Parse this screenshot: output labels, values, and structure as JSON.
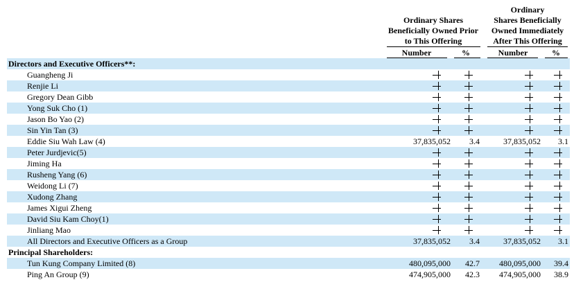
{
  "header": {
    "group1_lines": [
      "Ordinary Shares",
      "Beneficially Owned Prior",
      "to This Offering"
    ],
    "group2_lines": [
      "Ordinary",
      "Shares Beneficially",
      "Owned Immediately",
      "After This Offering"
    ],
    "col_number_1": "Number",
    "col_pct_1": "%",
    "col_number_2": "Number",
    "col_pct_2": "%"
  },
  "dash_symbol": "—",
  "rows": [
    {
      "type": "section",
      "label": "Directors and Executive Officers**:"
    },
    {
      "type": "data",
      "label": "Guangheng Ji",
      "before_number": "—",
      "before_pct": "—",
      "after_number": "—",
      "after_pct": "—"
    },
    {
      "type": "data",
      "label": "Renjie Li",
      "before_number": "—",
      "before_pct": "—",
      "after_number": "—",
      "after_pct": "—"
    },
    {
      "type": "data",
      "label": "Gregory Dean Gibb",
      "before_number": "—",
      "before_pct": "—",
      "after_number": "—",
      "after_pct": "—"
    },
    {
      "type": "data",
      "label": "Yong Suk Cho (1)",
      "before_number": "—",
      "before_pct": "—",
      "after_number": "—",
      "after_pct": "—"
    },
    {
      "type": "data",
      "label": "Jason Bo Yao (2)",
      "before_number": "—",
      "before_pct": "—",
      "after_number": "—",
      "after_pct": "—"
    },
    {
      "type": "data",
      "label": "Sin Yin Tan (3)",
      "before_number": "—",
      "before_pct": "—",
      "after_number": "—",
      "after_pct": "—"
    },
    {
      "type": "data",
      "label": "Eddie Siu Wah Law (4)",
      "before_number": "37,835,052",
      "before_pct": "3.4",
      "after_number": "37,835,052",
      "after_pct": "3.1"
    },
    {
      "type": "data",
      "label": "Peter Jurdjevic(5)",
      "before_number": "—",
      "before_pct": "—",
      "after_number": "—",
      "after_pct": "—"
    },
    {
      "type": "data",
      "label": "Jiming Ha",
      "before_number": "—",
      "before_pct": "—",
      "after_number": "—",
      "after_pct": "—"
    },
    {
      "type": "data",
      "label": "Rusheng Yang (6)",
      "before_number": "—",
      "before_pct": "—",
      "after_number": "—",
      "after_pct": "—"
    },
    {
      "type": "data",
      "label": "Weidong Li (7)",
      "before_number": "—",
      "before_pct": "—",
      "after_number": "—",
      "after_pct": "—"
    },
    {
      "type": "data",
      "label": "Xudong Zhang",
      "before_number": "—",
      "before_pct": "—",
      "after_number": "—",
      "after_pct": "—"
    },
    {
      "type": "data",
      "label": "James Xigui Zheng",
      "before_number": "—",
      "before_pct": "—",
      "after_number": "—",
      "after_pct": "—"
    },
    {
      "type": "data",
      "label": "David Siu Kam Choy(1)",
      "before_number": "—",
      "before_pct": "—",
      "after_number": "—",
      "after_pct": "—"
    },
    {
      "type": "data",
      "label": "Jinliang Mao",
      "before_number": "—",
      "before_pct": "—",
      "after_number": "—",
      "after_pct": "—"
    },
    {
      "type": "data",
      "label": "All Directors and Executive Officers as a Group",
      "before_number": "37,835,052",
      "before_pct": "3.4",
      "after_number": "37,835,052",
      "after_pct": "3.1"
    },
    {
      "type": "section",
      "label": "Principal Shareholders:"
    },
    {
      "type": "data",
      "label": "Tun Kung Company Limited (8)",
      "before_number": "480,095,000",
      "before_pct": "42.7",
      "after_number": "480,095,000",
      "after_pct": "39.4"
    },
    {
      "type": "data",
      "label": "Ping An Group (9)",
      "before_number": "474,905,000",
      "before_pct": "42.3",
      "after_number": "474,905,000",
      "after_pct": "38.9"
    }
  ],
  "colors": {
    "row_shade": "#cfe8f7"
  }
}
